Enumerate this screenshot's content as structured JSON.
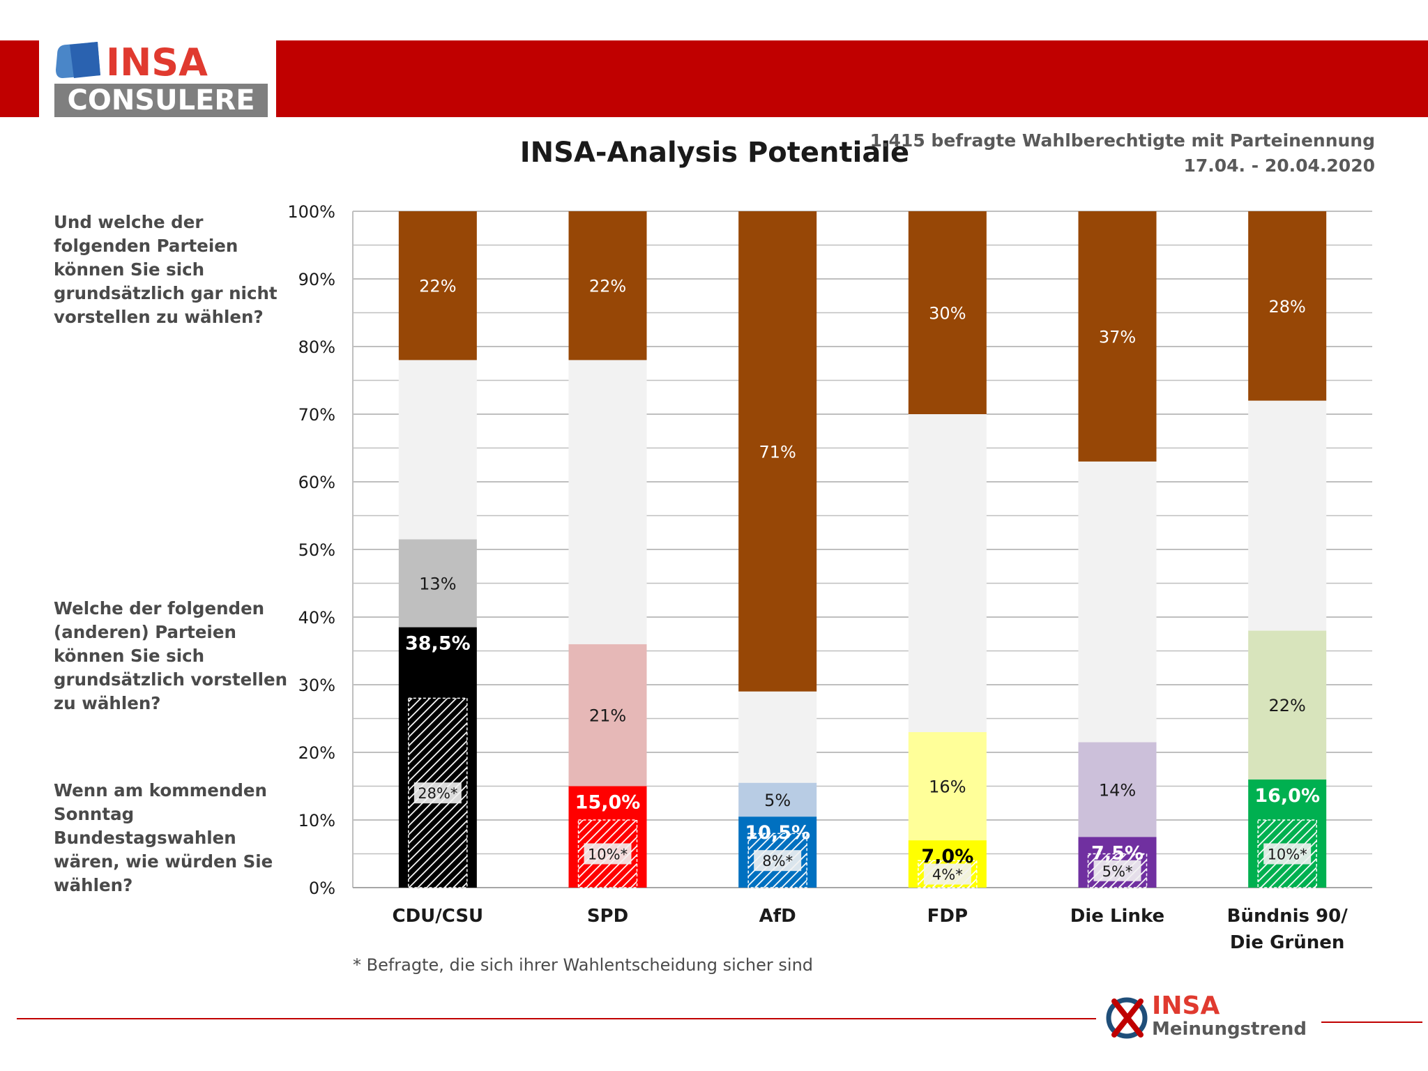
{
  "header": {
    "logo_top": "INSA",
    "logo_bottom": "CONSULERE",
    "title": "INSA-Analysis Potentiale",
    "sample": "1.415 befragte Wahlberechtigte mit Parteinennung",
    "date_range": "17.04. - 20.04.2020"
  },
  "questions": {
    "q_reject": "Und welche der folgenden Parteien können Sie sich grundsätzlich gar nicht vorstellen zu wählen?",
    "q_potential": "Welche der folgenden (anderen) Parteien können Sie sich grundsätzlich vorstellen zu wählen?",
    "q_vote": "Wenn am kommenden Sonntag Bundestagswahlen wären, wie würden Sie wählen?"
  },
  "footer": {
    "footnote": "* Befragte, die sich ihrer Wahlentscheidung sicher sind",
    "brand_top": "INSA",
    "brand_bottom": "Meinungstrend"
  },
  "colors": {
    "reject": "#974706",
    "neutral": "#f2f2f2",
    "grid": "#bfbfbf"
  },
  "chart_data": {
    "type": "bar",
    "stacked": true,
    "ylim": [
      0,
      100
    ],
    "yticks": [
      "0%",
      "10%",
      "20%",
      "30%",
      "40%",
      "50%",
      "60%",
      "70%",
      "80%",
      "90%",
      "100%"
    ],
    "grid": true,
    "categories": [
      {
        "name": "CDU/CSU",
        "lines": [
          "CDU/CSU"
        ],
        "vote": 38.5,
        "vote_label": "38,5%",
        "sure": 28,
        "sure_label": "28%*",
        "potential": 13,
        "potential_label": "13%",
        "reject": 22,
        "reject_label": "22%",
        "color": "#000000",
        "pot_color": "#bfbfbf",
        "vote_text": "#ffffff"
      },
      {
        "name": "SPD",
        "lines": [
          "SPD"
        ],
        "vote": 15.0,
        "vote_label": "15,0%",
        "sure": 10,
        "sure_label": "10%*",
        "potential": 21,
        "potential_label": "21%",
        "reject": 22,
        "reject_label": "22%",
        "color": "#ff0000",
        "pot_color": "#e6b8b7",
        "vote_text": "#ffffff"
      },
      {
        "name": "AfD",
        "lines": [
          "AfD"
        ],
        "vote": 10.5,
        "vote_label": "10,5%",
        "sure": 8,
        "sure_label": "8%*",
        "potential": 5,
        "potential_label": "5%",
        "reject": 71,
        "reject_label": "71%",
        "color": "#0070c0",
        "pot_color": "#b8cce4",
        "vote_text": "#ffffff"
      },
      {
        "name": "FDP",
        "lines": [
          "FDP"
        ],
        "vote": 7.0,
        "vote_label": "7,0%",
        "sure": 4,
        "sure_label": "4%*",
        "potential": 16,
        "potential_label": "16%",
        "reject": 30,
        "reject_label": "30%",
        "color": "#ffff00",
        "pot_color": "#ffff99",
        "vote_text": "#000000"
      },
      {
        "name": "Die Linke",
        "lines": [
          "Die Linke"
        ],
        "vote": 7.5,
        "vote_label": "7,5%",
        "sure": 5,
        "sure_label": "5%*",
        "potential": 14,
        "potential_label": "14%",
        "reject": 37,
        "reject_label": "37%",
        "color": "#7030a0",
        "pot_color": "#ccc0da",
        "vote_text": "#ffffff"
      },
      {
        "name": "Bündnis 90/ Die Grünen",
        "lines": [
          "Bündnis 90/",
          "Die Grünen"
        ],
        "vote": 16.0,
        "vote_label": "16,0%",
        "sure": 10,
        "sure_label": "10%*",
        "potential": 22,
        "potential_label": "22%",
        "reject": 28,
        "reject_label": "28%",
        "color": "#00b050",
        "pot_color": "#d8e4bc",
        "vote_text": "#ffffff"
      }
    ]
  }
}
